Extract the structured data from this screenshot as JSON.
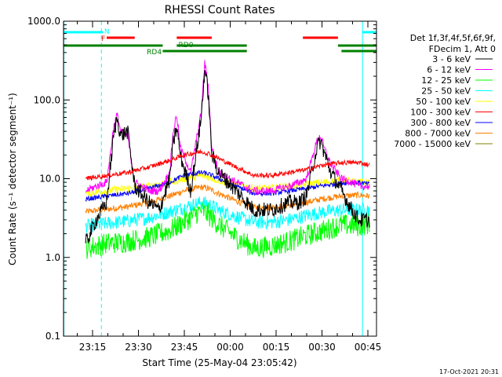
{
  "chart_data": {
    "type": "line",
    "title": "RHESSI Count Rates",
    "xlabel": "Start Time (25-May-04 23:05:42)",
    "ylabel": "Count Rate (s⁻¹ detector segment⁻¹)",
    "yscale": "log",
    "ylim": [
      0.1,
      1000
    ],
    "xlim_minutes_after_2300": [
      5.7,
      47.5
    ],
    "xticks": [
      {
        "label": "23:15",
        "t": 15
      },
      {
        "label": "23:30",
        "t": 30
      },
      {
        "label": "23:45",
        "t": 45
      },
      {
        "label": "00:00",
        "t": 60
      },
      {
        "label": "00:15",
        "t": 75
      },
      {
        "label": "00:30",
        "t": 90
      },
      {
        "label": "00:45",
        "t": 105
      }
    ],
    "yticks": [
      {
        "label": "0.1",
        "v": 0.1
      },
      {
        "label": "1.0",
        "v": 1
      },
      {
        "label": "10.0",
        "v": 10
      },
      {
        "label": "100.0",
        "v": 100
      },
      {
        "label": "1000.0",
        "v": 1000
      }
    ],
    "legend_header": [
      "Det 1f,3f,4f,5f,6f,9f,",
      "FDecim 1, Att 0"
    ],
    "legend_position": "right",
    "series": [
      {
        "name": "3 - 6 keV",
        "color": "#000000",
        "points": [
          [
            12,
            1.5
          ],
          [
            15,
            3
          ],
          [
            18,
            5
          ],
          [
            20,
            35
          ],
          [
            21,
            60
          ],
          [
            22,
            35
          ],
          [
            24,
            40
          ],
          [
            26,
            8
          ],
          [
            30,
            5
          ],
          [
            33,
            4
          ],
          [
            36,
            10
          ],
          [
            37,
            28
          ],
          [
            38,
            45
          ],
          [
            39,
            20
          ],
          [
            42,
            7
          ],
          [
            45,
            60
          ],
          [
            46,
            250
          ],
          [
            47,
            120
          ],
          [
            48,
            20
          ],
          [
            50,
            12
          ],
          [
            55,
            7
          ],
          [
            60,
            4
          ],
          [
            65,
            4
          ],
          [
            70,
            5
          ],
          [
            73,
            5
          ],
          [
            75,
            6
          ],
          [
            78,
            25
          ],
          [
            79,
            30
          ],
          [
            80,
            22
          ],
          [
            82,
            12
          ],
          [
            85,
            7
          ],
          [
            88,
            4
          ],
          [
            90,
            3
          ],
          [
            93,
            3
          ]
        ]
      },
      {
        "name": "6 - 12 keV",
        "color": "#ff00ff",
        "points": [
          [
            12,
            7
          ],
          [
            15,
            8
          ],
          [
            18,
            9
          ],
          [
            20,
            45
          ],
          [
            21,
            65
          ],
          [
            22,
            40
          ],
          [
            24,
            35
          ],
          [
            26,
            9
          ],
          [
            30,
            7
          ],
          [
            33,
            7
          ],
          [
            36,
            12
          ],
          [
            37,
            40
          ],
          [
            38,
            65
          ],
          [
            39,
            25
          ],
          [
            42,
            12
          ],
          [
            45,
            70
          ],
          [
            46,
            300
          ],
          [
            47,
            150
          ],
          [
            48,
            25
          ],
          [
            50,
            12
          ],
          [
            55,
            9
          ],
          [
            60,
            7
          ],
          [
            65,
            7
          ],
          [
            70,
            8
          ],
          [
            73,
            9
          ],
          [
            75,
            10
          ],
          [
            78,
            30
          ],
          [
            79,
            35
          ],
          [
            80,
            25
          ],
          [
            82,
            15
          ],
          [
            85,
            10
          ],
          [
            88,
            9
          ],
          [
            90,
            8
          ],
          [
            93,
            8
          ]
        ]
      },
      {
        "name": "12 - 25 keV",
        "color": "#00ff00",
        "points": [
          [
            12,
            1.3
          ],
          [
            18,
            1.5
          ],
          [
            24,
            1.6
          ],
          [
            30,
            1.8
          ],
          [
            36,
            2.2
          ],
          [
            40,
            2.8
          ],
          [
            45,
            4
          ],
          [
            47,
            3.5
          ],
          [
            50,
            2.6
          ],
          [
            55,
            1.8
          ],
          [
            60,
            1.3
          ],
          [
            65,
            1.4
          ],
          [
            70,
            1.6
          ],
          [
            75,
            1.9
          ],
          [
            80,
            2.2
          ],
          [
            85,
            2.6
          ],
          [
            90,
            2.5
          ],
          [
            93,
            2.7
          ]
        ]
      },
      {
        "name": "25 - 50 keV",
        "color": "#00ffff",
        "points": [
          [
            12,
            2.5
          ],
          [
            18,
            2.7
          ],
          [
            24,
            2.9
          ],
          [
            30,
            3.2
          ],
          [
            36,
            3.8
          ],
          [
            40,
            4.3
          ],
          [
            45,
            5
          ],
          [
            47,
            4.8
          ],
          [
            50,
            4
          ],
          [
            55,
            3.3
          ],
          [
            60,
            2.8
          ],
          [
            65,
            2.8
          ],
          [
            70,
            3
          ],
          [
            75,
            3.4
          ],
          [
            80,
            3.8
          ],
          [
            85,
            4
          ],
          [
            90,
            4
          ],
          [
            93,
            4.1
          ]
        ]
      },
      {
        "name": "50 - 100 keV",
        "color": "#ffff00",
        "points": [
          [
            12,
            6.5
          ],
          [
            18,
            7
          ],
          [
            24,
            7.5
          ],
          [
            30,
            8
          ],
          [
            36,
            9
          ],
          [
            40,
            10
          ],
          [
            45,
            11
          ],
          [
            47,
            10.5
          ],
          [
            50,
            9.5
          ],
          [
            55,
            8.5
          ],
          [
            60,
            7.5
          ],
          [
            65,
            7.5
          ],
          [
            70,
            8
          ],
          [
            75,
            8.5
          ],
          [
            80,
            9
          ],
          [
            85,
            9.5
          ],
          [
            90,
            9
          ],
          [
            93,
            9
          ]
        ]
      },
      {
        "name": "100 - 300 keV",
        "color": "#ff0000",
        "points": [
          [
            12,
            10
          ],
          [
            18,
            11
          ],
          [
            24,
            12
          ],
          [
            30,
            14
          ],
          [
            36,
            17
          ],
          [
            40,
            20
          ],
          [
            45,
            22
          ],
          [
            47,
            21
          ],
          [
            50,
            18
          ],
          [
            55,
            14
          ],
          [
            60,
            11
          ],
          [
            65,
            11
          ],
          [
            70,
            12
          ],
          [
            75,
            13
          ],
          [
            80,
            15
          ],
          [
            85,
            16
          ],
          [
            90,
            16
          ],
          [
            93,
            15
          ]
        ]
      },
      {
        "name": "300 - 800 keV",
        "color": "#0000ff",
        "points": [
          [
            12,
            5.5
          ],
          [
            18,
            6
          ],
          [
            24,
            6.5
          ],
          [
            30,
            7.5
          ],
          [
            36,
            9
          ],
          [
            40,
            11
          ],
          [
            45,
            12
          ],
          [
            47,
            11.5
          ],
          [
            50,
            10
          ],
          [
            55,
            8
          ],
          [
            60,
            6.5
          ],
          [
            65,
            6.5
          ],
          [
            70,
            7
          ],
          [
            75,
            7.5
          ],
          [
            80,
            8.2
          ],
          [
            85,
            8.8
          ],
          [
            90,
            9
          ],
          [
            93,
            8.5
          ]
        ]
      },
      {
        "name": "800 - 7000 keV",
        "color": "#ff8000",
        "points": [
          [
            12,
            3.8
          ],
          [
            18,
            4.1
          ],
          [
            24,
            4.4
          ],
          [
            30,
            5
          ],
          [
            36,
            6
          ],
          [
            40,
            7
          ],
          [
            45,
            7.8
          ],
          [
            47,
            7.5
          ],
          [
            50,
            6.5
          ],
          [
            55,
            5.2
          ],
          [
            60,
            4.3
          ],
          [
            65,
            4.3
          ],
          [
            70,
            4.6
          ],
          [
            75,
            5
          ],
          [
            80,
            5.6
          ],
          [
            85,
            6
          ],
          [
            90,
            6.2
          ],
          [
            93,
            6
          ]
        ]
      },
      {
        "name": "7000 - 15000 keV",
        "color": "#808000",
        "points": []
      }
    ],
    "attenuator_bars": [
      {
        "label": "N",
        "color": "#00ffff",
        "row": "top",
        "segments": [
          [
            5.7,
            17
          ],
          [
            91,
            97
          ]
        ]
      },
      {
        "label": "F",
        "color": "#ff0000",
        "row": "upper",
        "segments": [
          [
            18,
            26
          ],
          [
            38,
            48
          ],
          [
            74,
            84
          ]
        ]
      },
      {
        "label": "RD0",
        "color": "#008000",
        "row": "mid",
        "segments": [
          [
            5.7,
            34
          ],
          [
            38,
            58
          ],
          [
            84,
            100
          ]
        ]
      },
      {
        "label": "RD4",
        "color": "#008000",
        "row": "low",
        "segments": [
          [
            34,
            58
          ],
          [
            85,
            101
          ]
        ]
      }
    ],
    "vertical_markers": [
      {
        "t": 5.8,
        "color": "#00ffff",
        "style": "solid"
      },
      {
        "t": 16.5,
        "color": "#00ffff",
        "style": "dashed"
      },
      {
        "t": 91,
        "color": "#00ffff",
        "style": "solid"
      },
      {
        "t": 101.5,
        "color": "#00ffff",
        "style": "dashed"
      }
    ]
  },
  "footer": {
    "date": "17-Oct-2021 20:31"
  }
}
